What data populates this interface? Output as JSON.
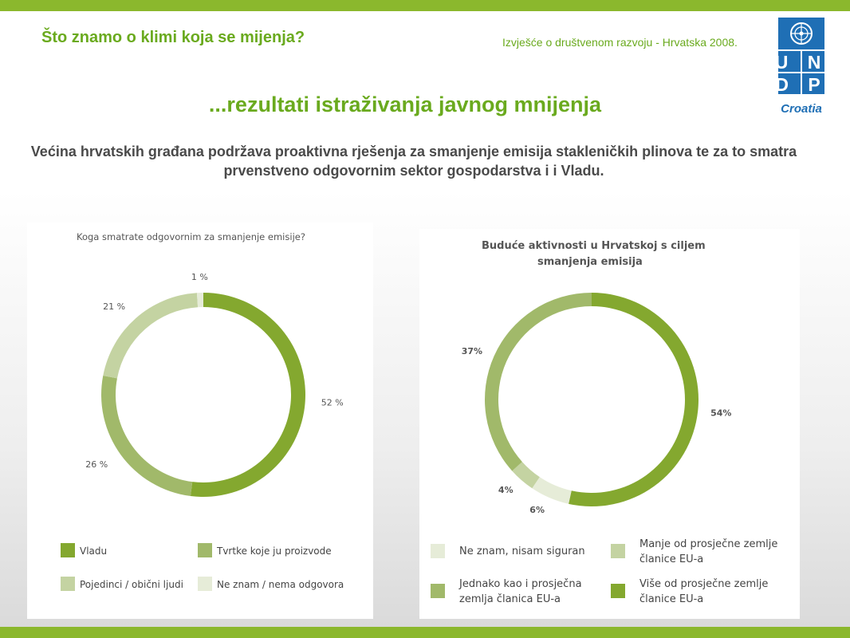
{
  "header": {
    "title": "Što znamo o klimi koja se mijenja?",
    "report": "Izvješće o društvenom razvoju - Hrvatska 2008."
  },
  "logo": {
    "row1": "U N",
    "row2": "D P",
    "caption": "Croatia",
    "icon": "un-emblem-icon"
  },
  "section_title": "...rezultati istraživanja javnog mnijenja",
  "lead": "Većina hrvatskih građana podržava proaktivna rješenja za smanjenje emisija stakleničkih plinova te za to smatra prvenstveno odgovornim sektor gospodarstva i i Vladu.",
  "chart_data": [
    {
      "type": "pie",
      "donut": true,
      "title": "Koga smatrate odgovornim za smanjenje emisije?",
      "legend_position": "bottom",
      "slices": [
        {
          "name": "Vladu",
          "value": 52,
          "label": "52 %",
          "color": "#84a82f"
        },
        {
          "name": "Tvrtke koje ju proizvode",
          "value": 26,
          "label": "26 %",
          "color": "#a1b96a"
        },
        {
          "name": "Pojedinci / obični ljudi",
          "value": 21,
          "label": "21 %",
          "color": "#c4d3a2"
        },
        {
          "name": "Ne znam / nema odgovora",
          "value": 1,
          "label": "1 %",
          "color": "#e6ecd8"
        }
      ]
    },
    {
      "type": "pie",
      "donut": true,
      "title": "Buduće aktivnosti u Hrvatskoj s ciljem smanjenja emisija",
      "title_lines": [
        "Buduće aktivnosti u Hrvatskoj s ciljem",
        "smanjenja emisija"
      ],
      "legend_position": "bottom",
      "slices": [
        {
          "name": "Više od prosječne zemlje članice EU-a",
          "name_lines": [
            "Više od prosječne zemlje",
            "članice EU-a"
          ],
          "value": 54,
          "label": "54%",
          "color": "#84a82f"
        },
        {
          "name": "Ne znam, nisam siguran",
          "name_lines": [
            "Ne znam, nisam siguran"
          ],
          "value": 6,
          "label": "6%",
          "color": "#e6ecd8"
        },
        {
          "name": "Manje od prosječne zemlje članice EU-a",
          "name_lines": [
            "Manje od prosječne zemlje",
            "članice EU-a"
          ],
          "value": 4,
          "label": "4%",
          "color": "#c4d3a2"
        },
        {
          "name": "Jednako kao i prosječna zemlja članica EU-a",
          "name_lines": [
            "Jednako kao i prosječna",
            "zemlja članica EU-a"
          ],
          "value": 37,
          "label": "37%",
          "color": "#a1b96a"
        }
      ],
      "legend_order": [
        1,
        2,
        3,
        0
      ]
    }
  ]
}
